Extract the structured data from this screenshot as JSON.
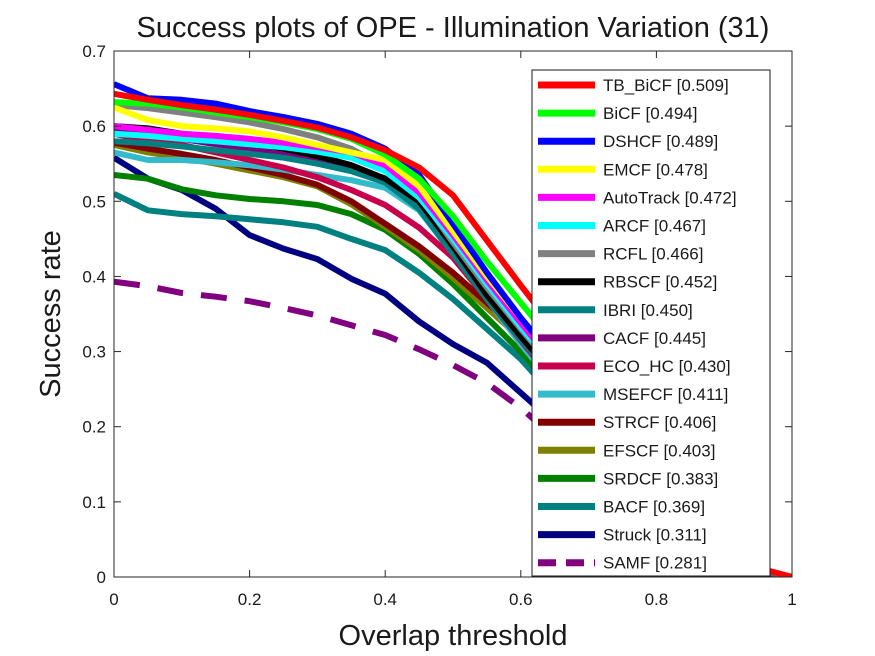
{
  "chart_data": {
    "type": "line",
    "title": "Success plots of OPE - Illumination Variation (31)",
    "xlabel": "Overlap threshold",
    "ylabel": "Success rate",
    "xlim": [
      0,
      1
    ],
    "ylim": [
      0,
      0.7
    ],
    "xticks": [
      "0",
      "0.2",
      "0.4",
      "0.6",
      "0.8",
      "1"
    ],
    "yticks": [
      "0",
      "0.1",
      "0.2",
      "0.3",
      "0.4",
      "0.5",
      "0.6",
      "0.7"
    ],
    "grid": false,
    "legend_position": "top-right",
    "x": [
      0,
      0.05,
      0.1,
      0.15,
      0.2,
      0.25,
      0.3,
      0.35,
      0.4,
      0.45,
      0.5,
      0.55,
      0.6,
      0.65,
      0.7,
      0.75,
      0.8,
      0.85,
      0.9,
      0.95,
      1
    ],
    "series": [
      {
        "name": "TB_BiCF [0.509]",
        "color": "#ff0000",
        "dashed": false,
        "values": [
          0.643,
          0.635,
          0.628,
          0.622,
          0.615,
          0.607,
          0.598,
          0.585,
          0.568,
          0.545,
          0.508,
          0.448,
          0.388,
          0.33,
          0.27,
          0.21,
          0.15,
          0.09,
          0.045,
          0.012,
          0
        ]
      },
      {
        "name": "BiCF [0.494]",
        "color": "#00ff00",
        "dashed": false,
        "values": [
          0.632,
          0.63,
          0.625,
          0.618,
          0.612,
          0.605,
          0.596,
          0.583,
          0.562,
          0.53,
          0.48,
          0.42,
          0.365,
          0.31,
          0.255,
          0.2,
          0.14,
          0.085,
          0.042,
          0.011,
          0
        ]
      },
      {
        "name": "DSHCF [0.489]",
        "color": "#0000ff",
        "dashed": false,
        "values": [
          0.656,
          0.637,
          0.635,
          0.63,
          0.62,
          0.612,
          0.603,
          0.59,
          0.57,
          0.535,
          0.47,
          0.405,
          0.345,
          0.29,
          0.238,
          0.185,
          0.13,
          0.08,
          0.04,
          0.01,
          0
        ]
      },
      {
        "name": "EMCF [0.478]",
        "color": "#ffff00",
        "dashed": false,
        "values": [
          0.625,
          0.608,
          0.6,
          0.597,
          0.593,
          0.585,
          0.575,
          0.565,
          0.555,
          0.52,
          0.46,
          0.4,
          0.345,
          0.29,
          0.237,
          0.183,
          0.128,
          0.078,
          0.038,
          0.01,
          0
        ]
      },
      {
        "name": "AutoTrack [0.472]",
        "color": "#ff00ff",
        "dashed": false,
        "values": [
          0.6,
          0.595,
          0.59,
          0.587,
          0.583,
          0.578,
          0.572,
          0.565,
          0.548,
          0.512,
          0.455,
          0.395,
          0.338,
          0.283,
          0.232,
          0.18,
          0.126,
          0.077,
          0.038,
          0.01,
          0
        ]
      },
      {
        "name": "ARCF [0.467]",
        "color": "#00ffff",
        "dashed": false,
        "values": [
          0.59,
          0.587,
          0.583,
          0.58,
          0.576,
          0.572,
          0.566,
          0.558,
          0.54,
          0.505,
          0.45,
          0.39,
          0.333,
          0.28,
          0.228,
          0.177,
          0.124,
          0.076,
          0.037,
          0.01,
          0
        ]
      },
      {
        "name": "RCFL [0.466]",
        "color": "#808080",
        "dashed": false,
        "values": [
          0.628,
          0.624,
          0.618,
          0.612,
          0.605,
          0.596,
          0.585,
          0.57,
          0.545,
          0.508,
          0.445,
          0.385,
          0.33,
          0.277,
          0.226,
          0.175,
          0.122,
          0.075,
          0.036,
          0.009,
          0
        ]
      },
      {
        "name": "RBSCF [0.452]",
        "color": "#000000",
        "dashed": false,
        "values": [
          0.6,
          0.597,
          0.59,
          0.585,
          0.578,
          0.57,
          0.56,
          0.548,
          0.53,
          0.5,
          0.44,
          0.375,
          0.32,
          0.268,
          0.218,
          0.168,
          0.118,
          0.072,
          0.035,
          0.009,
          0
        ]
      },
      {
        "name": "IBRI [0.450]",
        "color": "#008080",
        "dashed": false,
        "values": [
          0.58,
          0.577,
          0.573,
          0.568,
          0.563,
          0.558,
          0.55,
          0.54,
          0.525,
          0.49,
          0.43,
          0.37,
          0.316,
          0.265,
          0.215,
          0.166,
          0.116,
          0.071,
          0.034,
          0.009,
          0
        ]
      },
      {
        "name": "CACF [0.445]",
        "color": "#800080",
        "dashed": false,
        "values": [
          0.597,
          0.59,
          0.583,
          0.576,
          0.57,
          0.562,
          0.553,
          0.543,
          0.53,
          0.5,
          0.45,
          0.38,
          0.318,
          0.263,
          0.212,
          0.163,
          0.114,
          0.07,
          0.034,
          0.009,
          0
        ]
      },
      {
        "name": "ECO_HC [0.430]",
        "color": "#c8004b",
        "dashed": false,
        "values": [
          0.59,
          0.58,
          0.575,
          0.565,
          0.555,
          0.545,
          0.532,
          0.515,
          0.495,
          0.465,
          0.425,
          0.37,
          0.315,
          0.26,
          0.208,
          0.158,
          0.11,
          0.067,
          0.032,
          0.008,
          0
        ]
      },
      {
        "name": "MSEFCF [0.411]",
        "color": "#33bbcc",
        "dashed": false,
        "values": [
          0.565,
          0.555,
          0.555,
          0.552,
          0.548,
          0.542,
          0.535,
          0.528,
          0.518,
          0.488,
          0.43,
          0.37,
          0.31,
          0.255,
          0.2,
          0.15,
          0.104,
          0.063,
          0.03,
          0.008,
          0
        ]
      },
      {
        "name": "STRCF [0.406]",
        "color": "#800000",
        "dashed": false,
        "values": [
          0.578,
          0.57,
          0.563,
          0.555,
          0.545,
          0.535,
          0.522,
          0.5,
          0.47,
          0.44,
          0.405,
          0.365,
          0.325,
          0.275,
          0.22,
          0.165,
          0.112,
          0.066,
          0.031,
          0.008,
          0
        ]
      },
      {
        "name": "EFSCF [0.403]",
        "color": "#808000",
        "dashed": false,
        "values": [
          0.575,
          0.565,
          0.558,
          0.55,
          0.541,
          0.532,
          0.52,
          0.496,
          0.466,
          0.435,
          0.398,
          0.358,
          0.318,
          0.268,
          0.214,
          0.16,
          0.108,
          0.064,
          0.03,
          0.008,
          0
        ]
      },
      {
        "name": "SRDCF [0.383]",
        "color": "#008000",
        "dashed": false,
        "values": [
          0.535,
          0.53,
          0.516,
          0.508,
          0.503,
          0.5,
          0.495,
          0.483,
          0.462,
          0.43,
          0.39,
          0.345,
          0.3,
          0.25,
          0.198,
          0.148,
          0.1,
          0.06,
          0.028,
          0.007,
          0
        ]
      },
      {
        "name": "BACF [0.369]",
        "color": "#008080",
        "dashed": false,
        "values": [
          0.51,
          0.488,
          0.483,
          0.48,
          0.476,
          0.472,
          0.466,
          0.45,
          0.435,
          0.405,
          0.37,
          0.33,
          0.29,
          0.24,
          0.19,
          0.142,
          0.096,
          0.057,
          0.027,
          0.007,
          0
        ]
      },
      {
        "name": "Struck [0.311]",
        "color": "#000080",
        "dashed": false,
        "values": [
          0.558,
          0.53,
          0.515,
          0.49,
          0.455,
          0.437,
          0.423,
          0.397,
          0.377,
          0.34,
          0.31,
          0.285,
          0.245,
          0.205,
          0.165,
          0.125,
          0.085,
          0.05,
          0.024,
          0.006,
          0
        ]
      },
      {
        "name": "SAMF [0.281]",
        "color": "#800080",
        "dashed": true,
        "values": [
          0.393,
          0.387,
          0.378,
          0.373,
          0.367,
          0.358,
          0.348,
          0.335,
          0.322,
          0.303,
          0.282,
          0.258,
          0.225,
          0.185,
          0.148,
          0.11,
          0.075,
          0.045,
          0.021,
          0.005,
          0
        ]
      }
    ]
  }
}
